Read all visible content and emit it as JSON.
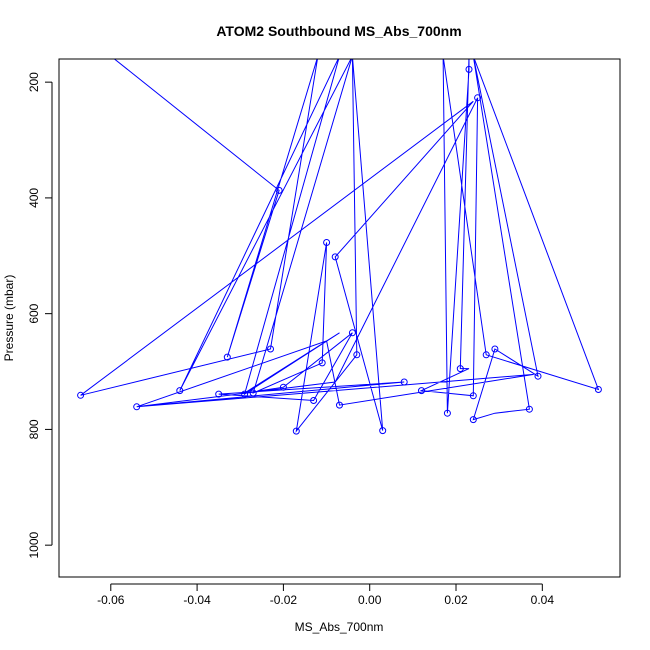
{
  "chart_data": {
    "type": "line",
    "title": "ATOM2 Southbound MS_Abs_700nm",
    "xlabel": "MS_Abs_700nm",
    "ylabel": "Pressure (mbar)",
    "xlim": [
      -0.072,
      0.058
    ],
    "ylim": [
      1055,
      160
    ],
    "y_reversed": true,
    "x_ticks": [
      -0.06,
      -0.04,
      -0.02,
      0.0,
      0.02,
      0.04
    ],
    "x_tick_labels": [
      "-0.06",
      "-0.04",
      "-0.02",
      "0.00",
      "0.02",
      "0.04"
    ],
    "y_ticks": [
      200,
      400,
      600,
      800,
      1000
    ],
    "y_tick_labels": [
      "200",
      "400",
      "600",
      "800",
      "1000"
    ],
    "color": "#0000ff",
    "grid": false,
    "legend": "none",
    "series": [
      {
        "points": [
          [
            -0.06,
            155
          ],
          [
            -0.021,
            387
          ],
          [
            -0.033,
            675
          ],
          [
            -0.012,
            155
          ],
          [
            -0.023,
            661
          ],
          [
            -0.067,
            741
          ],
          [
            0.024,
            233
          ],
          [
            -0.008,
            502
          ],
          [
            0.003,
            802
          ],
          [
            -0.004,
            155
          ],
          [
            -0.003,
            671
          ],
          [
            -0.017,
            803
          ],
          [
            -0.01,
            477
          ],
          [
            -0.011,
            685
          ],
          [
            -0.027,
            737
          ],
          [
            -0.004,
            155
          ],
          [
            -0.044,
            733
          ],
          [
            -0.007,
            155
          ],
          [
            -0.029,
            739
          ],
          [
            -0.007,
            633
          ],
          [
            -0.029,
            737
          ],
          [
            -0.02,
            727
          ],
          [
            -0.004,
            633
          ],
          [
            -0.013,
            750
          ],
          [
            -0.035,
            739
          ],
          [
            0.008,
            718
          ],
          [
            -0.054,
            761
          ],
          [
            0.038,
            705
          ],
          [
            -0.007,
            758
          ],
          [
            -0.01,
            647
          ],
          [
            -0.054,
            761
          ],
          [
            -0.008,
            718
          ],
          [
            0.025,
            227
          ],
          [
            0.024,
            742
          ],
          [
            0.012,
            733
          ],
          [
            0.023,
            695
          ],
          [
            0.021,
            695
          ],
          [
            0.023,
            155
          ],
          [
            0.023,
            178
          ],
          [
            0.018,
            772
          ],
          [
            0.017,
            155
          ],
          [
            0.027,
            671
          ],
          [
            0.053,
            731
          ],
          [
            0.024,
            155
          ],
          [
            0.039,
            708
          ],
          [
            0.029,
            661
          ],
          [
            0.024,
            783
          ],
          [
            0.029,
            772
          ],
          [
            0.037,
            765
          ],
          [
            0.024,
            155
          ],
          [
            0.025,
            155
          ]
        ],
        "markers": [
          [
            -0.021,
            387
          ],
          [
            -0.033,
            675
          ],
          [
            -0.023,
            661
          ],
          [
            -0.067,
            741
          ],
          [
            0.025,
            227
          ],
          [
            -0.008,
            502
          ],
          [
            0.003,
            802
          ],
          [
            -0.003,
            671
          ],
          [
            -0.017,
            803
          ],
          [
            -0.01,
            477
          ],
          [
            -0.011,
            685
          ],
          [
            -0.027,
            737
          ],
          [
            -0.044,
            733
          ],
          [
            -0.029,
            739
          ],
          [
            -0.004,
            633
          ],
          [
            -0.02,
            727
          ],
          [
            -0.013,
            750
          ],
          [
            -0.035,
            739
          ],
          [
            0.008,
            718
          ],
          [
            -0.054,
            761
          ],
          [
            -0.007,
            758
          ],
          [
            0.024,
            742
          ],
          [
            0.012,
            733
          ],
          [
            0.021,
            695
          ],
          [
            0.023,
            178
          ],
          [
            0.018,
            772
          ],
          [
            0.027,
            671
          ],
          [
            0.053,
            731
          ],
          [
            0.039,
            708
          ],
          [
            0.029,
            661
          ],
          [
            0.024,
            783
          ],
          [
            0.037,
            765
          ]
        ]
      }
    ]
  }
}
